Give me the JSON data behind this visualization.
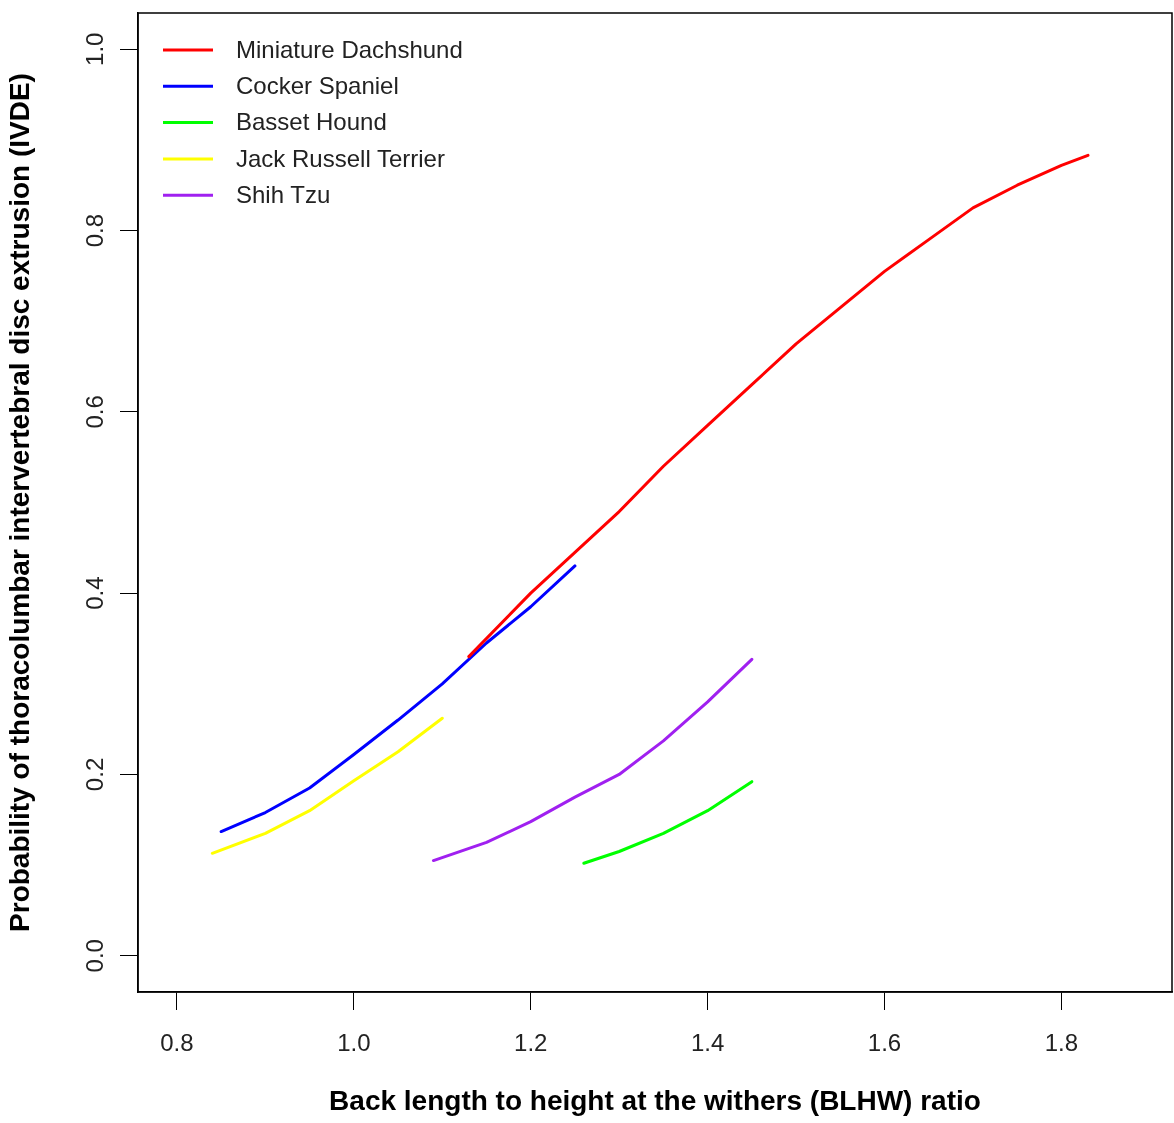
{
  "chart_data": {
    "type": "line",
    "xlabel": "Back length to height at the withers (BLHW) ratio",
    "ylabel": "Probability of thoracolumbar intervertebral disc extrusion (IVDE)",
    "xlim": [
      0.756,
      1.925
    ],
    "ylim": [
      -0.04,
      1.04
    ],
    "xticks": [
      0.8,
      {
        "value": 1.0,
        "label": "1.0"
      },
      1.2,
      1.4,
      1.6,
      1.8
    ],
    "yticks": [
      {
        "value": 0,
        "label": "0.0"
      },
      0.2,
      0.4,
      0.6,
      0.8,
      {
        "value": 1.0,
        "label": "1.0"
      }
    ],
    "legend": "top left",
    "marker": "none",
    "line_style": "solid",
    "series": [
      {
        "name": "Miniature Dachshund",
        "color": "#ff0000",
        "x": [
          1.13,
          1.2,
          1.25,
          1.3,
          1.35,
          1.4,
          1.45,
          1.5,
          1.55,
          1.6,
          1.65,
          1.7,
          1.75,
          1.8,
          1.83
        ],
        "values": [
          0.33,
          0.4,
          0.445,
          0.49,
          0.54,
          0.585,
          0.63,
          0.675,
          0.715,
          0.755,
          0.79,
          0.825,
          0.85,
          0.872,
          0.883
        ]
      },
      {
        "name": "Cocker Spaniel",
        "color": "#0000ff",
        "x": [
          0.85,
          0.9,
          0.95,
          1.0,
          1.05,
          1.1,
          1.15,
          1.2,
          1.25
        ],
        "values": [
          0.137,
          0.158,
          0.185,
          0.222,
          0.26,
          0.3,
          0.345,
          0.385,
          0.43
        ]
      },
      {
        "name": "Basset Hound",
        "color": "#00ff00",
        "x": [
          1.26,
          1.3,
          1.35,
          1.4,
          1.45
        ],
        "values": [
          0.102,
          0.115,
          0.135,
          0.16,
          0.192
        ]
      },
      {
        "name": "Jack Russell Terrier",
        "color": "#ffff00",
        "x": [
          0.84,
          0.9,
          0.95,
          1.0,
          1.05,
          1.1
        ],
        "values": [
          0.113,
          0.135,
          0.16,
          0.193,
          0.225,
          0.262
        ]
      },
      {
        "name": "Shih Tzu",
        "color": "#a020f0",
        "x": [
          1.09,
          1.15,
          1.2,
          1.25,
          1.3,
          1.35,
          1.4,
          1.45
        ],
        "values": [
          0.105,
          0.125,
          0.148,
          0.175,
          0.2,
          0.237,
          0.28,
          0.327
        ]
      }
    ]
  }
}
